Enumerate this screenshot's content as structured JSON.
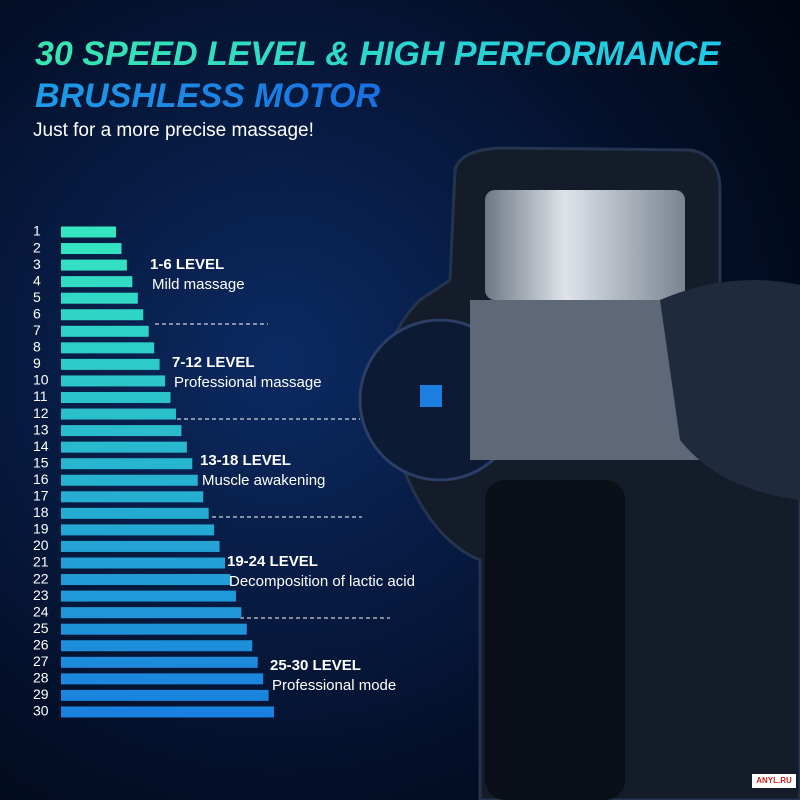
{
  "header": {
    "title": "30 SPEED LEVEL & HIGH PERFORMANCE",
    "title2": "BRUSHLESS MOTOR",
    "subtitle": "Just for a more precise massage!"
  },
  "levels": [
    1,
    2,
    3,
    4,
    5,
    6,
    7,
    8,
    9,
    10,
    11,
    12,
    13,
    14,
    15,
    16,
    17,
    18,
    19,
    20,
    21,
    22,
    23,
    24,
    25,
    26,
    27,
    28,
    29,
    30
  ],
  "groups": [
    {
      "range": "1-6 LEVEL",
      "desc": "Mild massage"
    },
    {
      "range": "7-12 LEVEL",
      "desc": "Professional massage"
    },
    {
      "range": "13-18 LEVEL",
      "desc": "Muscle awakening"
    },
    {
      "range": "19-24 LEVEL",
      "desc": "Decomposition of lactic acid"
    },
    {
      "range": "25-30 LEVEL",
      "desc": "Professional mode"
    }
  ],
  "watermark": "ANYL.RU"
}
